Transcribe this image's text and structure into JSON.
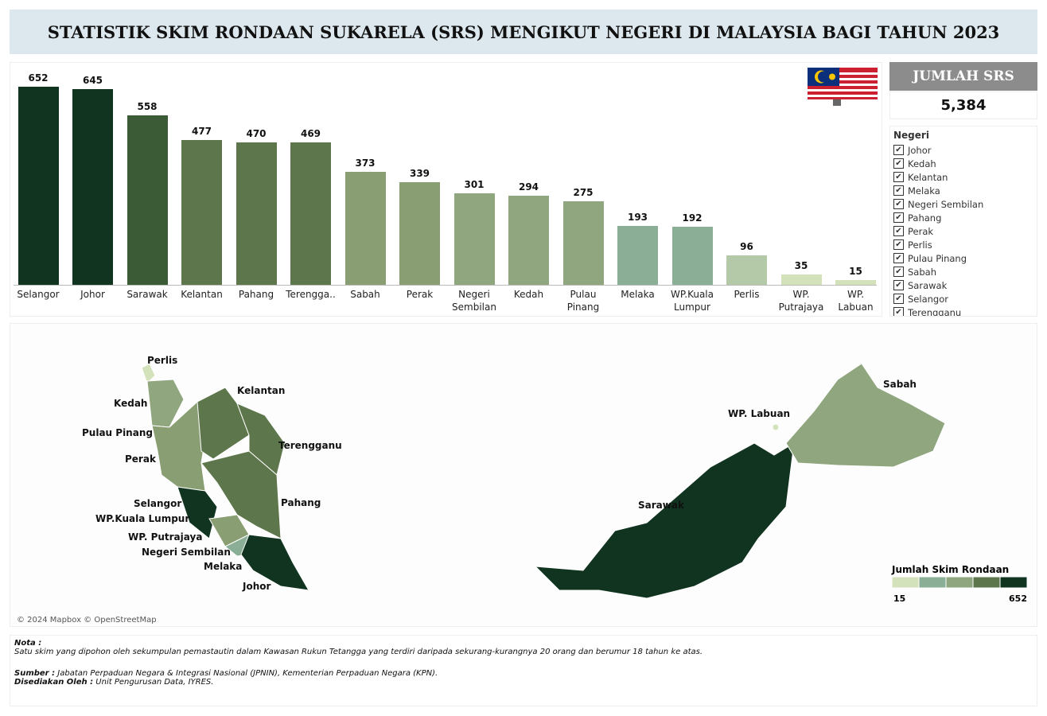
{
  "header": {
    "title": "STATISTIK SKIM RONDAAN SUKARELA (SRS) MENGIKUT NEGERI DI MALAYSIA BAGI TAHUN 2023"
  },
  "chart_data": {
    "type": "bar",
    "categories": [
      "Selangor",
      "Johor",
      "Sarawak",
      "Kelantan",
      "Pahang",
      "Terengga..",
      "Sabah",
      "Perak",
      "Negeri Sembilan",
      "Kedah",
      "Pulau Pinang",
      "Melaka",
      "WP.Kuala Lumpur",
      "Perlis",
      "WP. Putrajaya",
      "WP. Labuan"
    ],
    "values": [
      652,
      645,
      558,
      477,
      470,
      469,
      373,
      339,
      301,
      294,
      275,
      193,
      192,
      96,
      35,
      15
    ],
    "colors": [
      "#10341f",
      "#10341f",
      "#3b5a36",
      "#5d764b",
      "#5d764b",
      "#5d764b",
      "#8a9e73",
      "#8a9e73",
      "#8fa67e",
      "#8fa67e",
      "#8fa67e",
      "#8aae96",
      "#8aae96",
      "#b3c9a8",
      "#d4e2bc",
      "#d4e2bc"
    ]
  },
  "kpi": {
    "title": "JUMLAH SRS",
    "value": "5,384"
  },
  "filter": {
    "title": "Negeri",
    "items": [
      "Johor",
      "Kedah",
      "Kelantan",
      "Melaka",
      "Negeri Sembilan",
      "Pahang",
      "Perak",
      "Perlis",
      "Pulau Pinang",
      "Sabah",
      "Sarawak",
      "Selangor",
      "Terengganu"
    ]
  },
  "map": {
    "labels": [
      "Perlis",
      "Kedah",
      "Pulau Pinang",
      "Perak",
      "Kelantan",
      "Terengganu",
      "Pahang",
      "Selangor",
      "WP.Kuala Lumpur",
      "WP. Putrajaya",
      "Negeri Sembilan",
      "Melaka",
      "Johor",
      "Sarawak",
      "Sabah",
      "WP. Labuan"
    ],
    "legend": {
      "title": "Jumlah Skim Rondaan",
      "min": 15,
      "max": 652
    },
    "credit": "© 2024 Mapbox © OpenStreetMap"
  },
  "notes": {
    "nota_label": "Nota :",
    "nota_text": "Satu skim yang dipohon oleh sekumpulan pemastautin dalam Kawasan Rukun Tetangga yang terdiri daripada sekurang-kurangnya 20 orang dan berumur 18 tahun ke atas.",
    "sumber_label": "Sumber :",
    "sumber_text": "Jabatan Perpaduan Negara & Integrasi Nasional (JPNIN), Kementerian Perpaduan Negara (KPN).",
    "disediakan_label": "Disediakan Oleh :",
    "disediakan_text": "Unit Pengurusan Data, IYRES."
  }
}
